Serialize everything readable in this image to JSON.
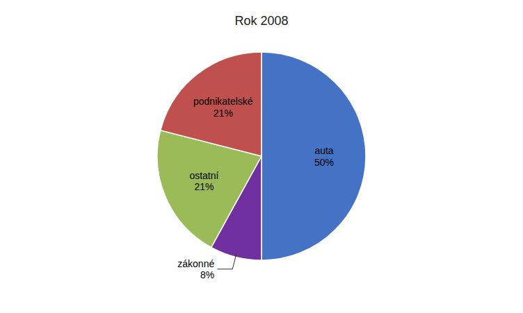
{
  "chart_data": {
    "type": "pie",
    "title": "Rok 2008",
    "categories": [
      "auta",
      "zákonné",
      "ostatní",
      "podnikatelské"
    ],
    "values": [
      50,
      8,
      21,
      21
    ],
    "value_labels": [
      "50%",
      "8%",
      "21%",
      "21%"
    ],
    "colors": [
      "#4472C4",
      "#7030A0",
      "#9BBB59",
      "#C0504D"
    ],
    "data_labels": true
  }
}
